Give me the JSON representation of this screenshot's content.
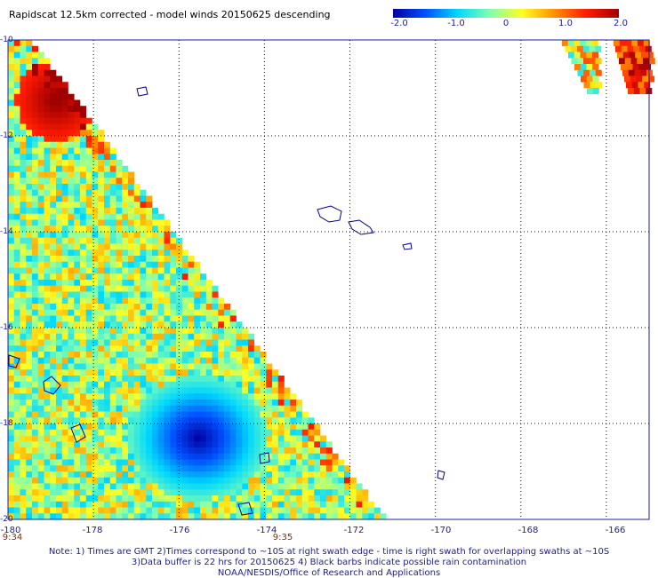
{
  "title": "Rapidscat 12.5km corrected - model winds 20150625 descending",
  "colorbar": {
    "ticks": [
      "-2.0",
      "-1.0",
      "0",
      "1.0",
      "2.0"
    ],
    "colors": [
      "#0000a0",
      "#0050ff",
      "#00d8ff",
      "#80ffb0",
      "#ffff20",
      "#ff9000",
      "#ff1a00",
      "#a00000"
    ]
  },
  "map": {
    "lat_labels": [
      "-10",
      "-12",
      "-14",
      "-16",
      "-18",
      "-20"
    ],
    "lon_labels": [
      "-180",
      "-178",
      "-176",
      "-174",
      "-172",
      "-170",
      "-168",
      "-166"
    ],
    "lat_range": [
      -20,
      -10
    ],
    "lon_range": [
      -180,
      -165
    ],
    "times": [
      "9:34",
      "9:35"
    ],
    "grid_color": "#000080",
    "land_color": "#00008b"
  },
  "notes": {
    "line1": "Note: 1) Times are GMT 2)Times correspond to ~10S at right swath edge - time is right swath for overlapping swaths at ~10S",
    "line2": "3)Data buffer is 22 hrs for 20150625 4) Black barbs indicate possible rain contamination",
    "line3": "NOAA/NESDIS/Office of Research and Applications"
  }
}
